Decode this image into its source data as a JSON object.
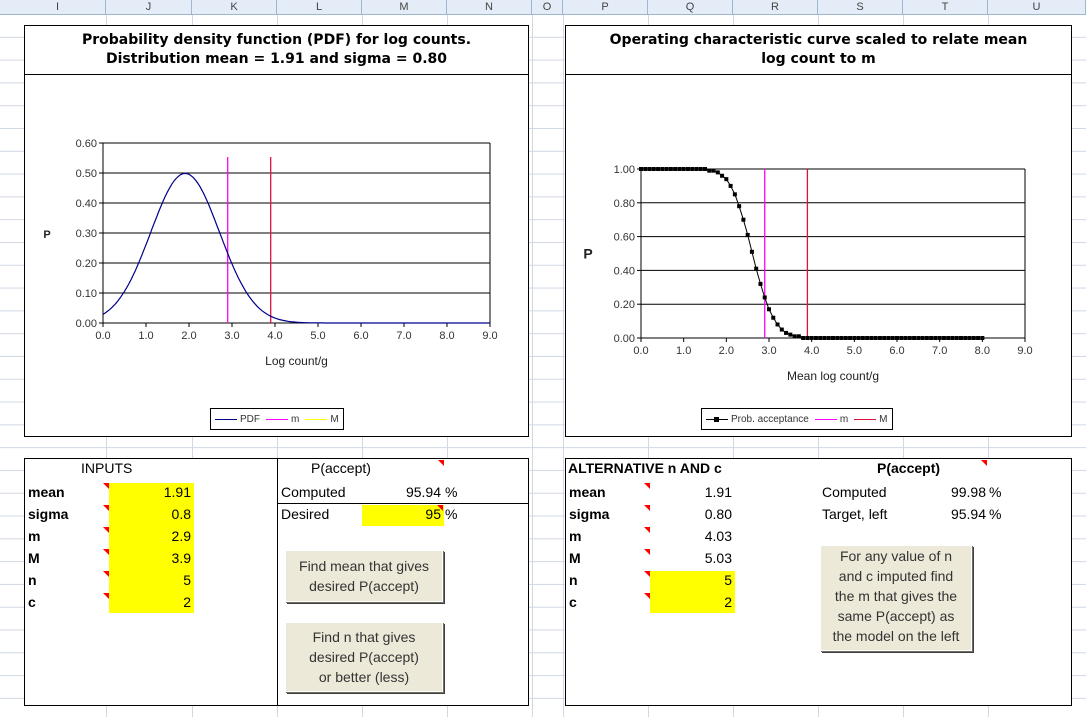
{
  "column_headers": [
    "I",
    "J",
    "K",
    "L",
    "M",
    "N",
    "O",
    "P",
    "Q",
    "R",
    "S",
    "T",
    "U"
  ],
  "colors": {
    "pdf": "#00008b",
    "m": "#ff00ff",
    "M": "#dc143c",
    "oc": "#000000",
    "highlight": "#ffff00",
    "comment": "#ff0000"
  },
  "chart_data": [
    {
      "type": "line",
      "title": "Probability density function (PDF) for log counts.\nDistribution mean = 1.91 and sigma = 0.80",
      "xlabel": "Log count/g",
      "ylabel": "P",
      "xlim": [
        0,
        9
      ],
      "ylim": [
        0,
        0.6
      ],
      "xticks": [
        "0.0",
        "1.0",
        "2.0",
        "3.0",
        "4.0",
        "5.0",
        "6.0",
        "7.0",
        "8.0",
        "9.0"
      ],
      "yticks": [
        "0.00",
        "0.10",
        "0.20",
        "0.30",
        "0.40",
        "0.50",
        "0.60"
      ],
      "grid": "horizontal",
      "legend_position": "bottom",
      "series": [
        {
          "name": "PDF",
          "distribution": "normal",
          "mean": 1.91,
          "sigma": 0.8,
          "x_range": [
            0,
            9
          ],
          "color": "#00008b"
        },
        {
          "name": "m",
          "vertical_at": 2.9,
          "color": "#ff00ff"
        },
        {
          "name": "M",
          "vertical_at": 3.9,
          "color": "#dc143c"
        }
      ],
      "legend": [
        "PDF",
        "m",
        "M"
      ]
    },
    {
      "type": "line",
      "title": "Operating characteristic curve scaled to relate mean\nlog count to m",
      "xlabel": "Mean log count/g",
      "ylabel": "P",
      "xlim": [
        0,
        9
      ],
      "ylim": [
        0,
        1
      ],
      "xticks": [
        "0.0",
        "1.0",
        "2.0",
        "3.0",
        "4.0",
        "5.0",
        "6.0",
        "7.0",
        "8.0",
        "9.0"
      ],
      "yticks": [
        "0.00",
        "0.20",
        "0.40",
        "0.60",
        "0.80",
        "1.00"
      ],
      "grid": "horizontal",
      "legend_position": "bottom",
      "series": [
        {
          "name": "Prob. acceptance",
          "marker": "square",
          "x": [
            0,
            0.1,
            0.2,
            0.3,
            0.4,
            0.5,
            0.6,
            0.7,
            0.8,
            0.9,
            1.0,
            1.1,
            1.2,
            1.3,
            1.4,
            1.5,
            1.6,
            1.7,
            1.8,
            1.9,
            2.0,
            2.1,
            2.2,
            2.3,
            2.4,
            2.5,
            2.6,
            2.7,
            2.8,
            2.9,
            3.0,
            3.1,
            3.2,
            3.3,
            3.4,
            3.5,
            3.6,
            3.7,
            3.8,
            3.9,
            4.0,
            4.1,
            4.2,
            4.3,
            4.4,
            4.5,
            4.6,
            4.7,
            4.8,
            4.9,
            5.0,
            5.1,
            5.2,
            5.3,
            5.4,
            5.5,
            5.6,
            5.7,
            5.8,
            5.9,
            6.0,
            6.1,
            6.2,
            6.3,
            6.4,
            6.5,
            6.6,
            6.7,
            6.8,
            6.9,
            7.0,
            7.1,
            7.2,
            7.3,
            7.4,
            7.5,
            7.6,
            7.7,
            7.8,
            7.9,
            8.0
          ],
          "y": [
            1.0,
            1.0,
            1.0,
            1.0,
            1.0,
            1.0,
            1.0,
            1.0,
            1.0,
            1.0,
            1.0,
            1.0,
            1.0,
            1.0,
            1.0,
            1.0,
            0.99,
            0.99,
            0.98,
            0.96,
            0.94,
            0.9,
            0.85,
            0.78,
            0.7,
            0.61,
            0.51,
            0.41,
            0.32,
            0.24,
            0.17,
            0.12,
            0.08,
            0.05,
            0.03,
            0.02,
            0.01,
            0.01,
            0.0,
            0.0,
            0.0,
            0.0,
            0.0,
            0.0,
            0.0,
            0.0,
            0.0,
            0.0,
            0.0,
            0.0,
            0.0,
            0.0,
            0.0,
            0.0,
            0.0,
            0.0,
            0.0,
            0.0,
            0.0,
            0.0,
            0.0,
            0.0,
            0.0,
            0.0,
            0.0,
            0.0,
            0.0,
            0.0,
            0.0,
            0.0,
            0.0,
            0.0,
            0.0,
            0.0,
            0.0,
            0.0,
            0.0,
            0.0,
            0.0,
            0.0,
            0.0
          ],
          "color": "#000000"
        },
        {
          "name": "m",
          "vertical_at": 2.9,
          "color": "#ff00ff"
        },
        {
          "name": "M",
          "vertical_at": 3.9,
          "color": "#dc143c"
        }
      ],
      "legend": [
        "Prob. acceptance",
        "m",
        "M"
      ]
    }
  ],
  "inputs": {
    "header": "INPUTS",
    "rows": [
      {
        "label": "mean",
        "value": "1.91"
      },
      {
        "label": "sigma",
        "value": "0.8"
      },
      {
        "label": "m",
        "value": "2.9"
      },
      {
        "label": "M",
        "value": "3.9"
      },
      {
        "label": "n",
        "value": "5"
      },
      {
        "label": "c",
        "value": "2"
      }
    ]
  },
  "paccept_left": {
    "header": "P(accept)",
    "computed_label": "Computed",
    "computed_value": "95.94",
    "desired_label": "Desired",
    "desired_value": "95",
    "unit": "%"
  },
  "buttons": {
    "find_mean": "Find mean that gives\ndesired P(accept)",
    "find_n": "Find n that gives\ndesired P(accept)\nor better (less)"
  },
  "alternative": {
    "header": "ALTERNATIVE n AND c",
    "rows": [
      {
        "label": "mean",
        "value": "1.91"
      },
      {
        "label": "sigma",
        "value": "0.80"
      },
      {
        "label": "m",
        "value": "4.03"
      },
      {
        "label": "M",
        "value": "5.03"
      },
      {
        "label": "n",
        "value": "5"
      },
      {
        "label": "c",
        "value": "2"
      }
    ]
  },
  "paccept_right": {
    "header": "P(accept)",
    "computed_label": "Computed",
    "computed_value": "99.98",
    "target_label": "Target, left",
    "target_value": "95.94",
    "unit": "%"
  },
  "note": "For any value of n\nand c imputed find\nthe m that gives the\nsame P(accept) as\nthe model on the left"
}
